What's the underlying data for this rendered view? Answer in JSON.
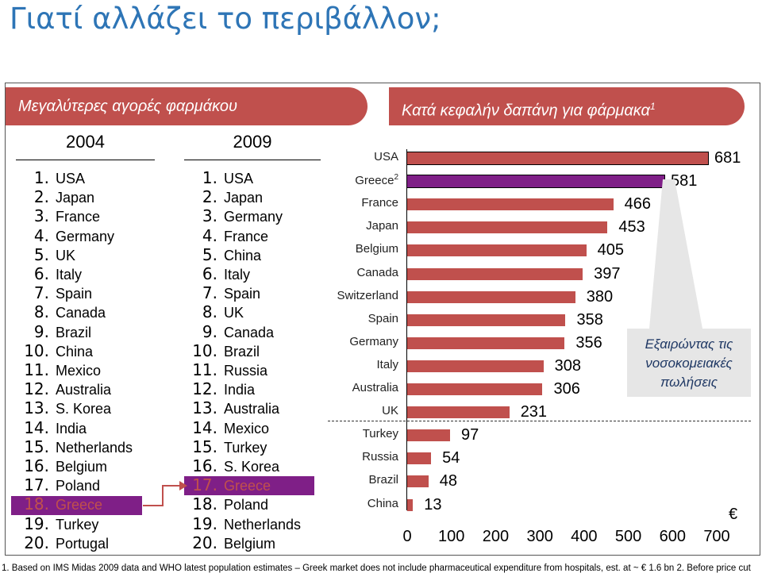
{
  "title": "Γιατί αλλάζει το περιβάλλον;",
  "left_banner": "Μεγαλύτερες αγορές φαρμάκου",
  "right_banner": "Κατά κεφαλήν δαπάνη για φάρμακα",
  "right_banner_sup": "1",
  "rank_2004": {
    "year": "2004",
    "nums": [
      "1.",
      "2.",
      "3.",
      "4.",
      "5.",
      "6.",
      "7.",
      "8.",
      "9.",
      "10.",
      "11.",
      "12.",
      "13.",
      "14.",
      "15.",
      "16.",
      "17.",
      "18.",
      "19.",
      "20."
    ],
    "countries": [
      "USA",
      "Japan",
      "France",
      "Germany",
      "UK",
      "Italy",
      "Spain",
      "Canada",
      "Brazil",
      "China",
      "Mexico",
      "Australia",
      "S. Korea",
      "India",
      "Netherlands",
      "Belgium",
      "Poland",
      "Greece",
      "Turkey",
      "Portugal"
    ]
  },
  "rank_2009": {
    "year": "2009",
    "nums": [
      "1.",
      "2.",
      "3.",
      "4.",
      "5.",
      "6.",
      "7.",
      "8.",
      "9.",
      "10.",
      "11.",
      "12.",
      "13.",
      "14.",
      "15.",
      "16.",
      "17.",
      "18.",
      "19.",
      "20."
    ],
    "countries": [
      "USA",
      "Japan",
      "Germany",
      "France",
      "China",
      "Italy",
      "Spain",
      "UK",
      "Canada",
      "Brazil",
      "Russia",
      "India",
      "Australia",
      "Mexico",
      "Turkey",
      "S. Korea",
      "Greece",
      "Poland",
      "Netherlands",
      "Belgium"
    ]
  },
  "highlight_color": "#7f1f87",
  "bar_color": "#c0504d",
  "chart_data": {
    "type": "bar",
    "orientation": "horizontal",
    "categories": [
      "USA",
      "Greece",
      "France",
      "Japan",
      "Belgium",
      "Canada",
      "Switzerland",
      "Spain",
      "Germany",
      "Italy",
      "Australia",
      "UK",
      "Turkey",
      "Russia",
      "Brazil",
      "China"
    ],
    "category_sup": {
      "Greece": "2"
    },
    "values": [
      681,
      581,
      466,
      453,
      405,
      397,
      380,
      358,
      356,
      308,
      306,
      231,
      97,
      54,
      48,
      13
    ],
    "value_labels": [
      "681",
      "581",
      "466",
      "453",
      "405",
      "397",
      "380",
      "358",
      "356",
      "308",
      "306",
      "231",
      "97",
      "54",
      "48",
      "13"
    ],
    "xticks": [
      "0",
      "100",
      "200",
      "300",
      "400",
      "500",
      "600",
      "700"
    ],
    "xlim": [
      0,
      700
    ],
    "unit": "€",
    "callout": "Εξαιρώντας τις νοσοκομειακές πωλήσεις"
  },
  "footnote": "1. Based on IMS Midas 2009 data and WHO latest population estimates – Greek market does not include pharmaceutical expenditure from hospitals, est. at ~ € 1.6 bn  2. Before price cut"
}
